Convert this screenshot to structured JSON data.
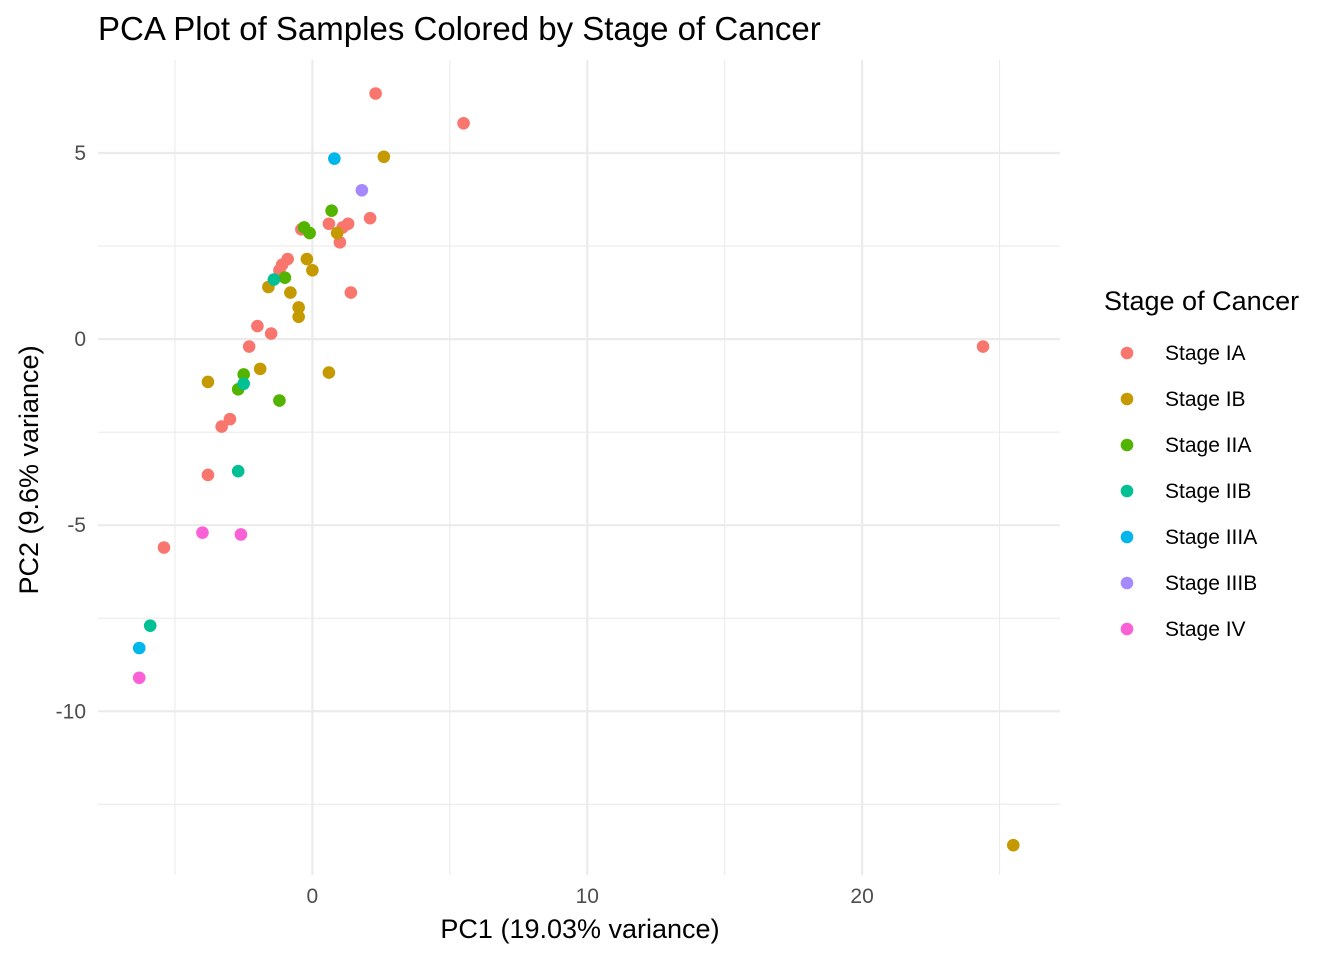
{
  "chart_data": {
    "type": "scatter",
    "title": "PCA Plot of Samples Colored by Stage of Cancer",
    "xlabel": "PC1 (19.03% variance)",
    "ylabel": "PC2 (9.6% variance)",
    "xlim": [
      -7.8,
      27.2
    ],
    "ylim": [
      -14.4,
      7.5
    ],
    "x_ticks": [
      0,
      10,
      20
    ],
    "x_tick_labels": [
      "0",
      "10",
      "20"
    ],
    "x_minor": [
      -5,
      5,
      15,
      25
    ],
    "y_ticks": [
      -10,
      -5,
      0,
      5
    ],
    "y_tick_labels": [
      "-10",
      "-5",
      "0",
      "5"
    ],
    "y_minor": [
      -12.5,
      -7.5,
      -2.5,
      2.5
    ],
    "grid": true,
    "legend_title": "Stage of Cancer",
    "legend_position": "right",
    "series": [
      {
        "name": "Stage IA",
        "color": "#F8766D",
        "points": [
          [
            2.3,
            6.6
          ],
          [
            5.5,
            5.8
          ],
          [
            2.1,
            3.25
          ],
          [
            1.3,
            3.1
          ],
          [
            0.6,
            3.1
          ],
          [
            1.1,
            3.0
          ],
          [
            -0.4,
            2.95
          ],
          [
            1.0,
            2.6
          ],
          [
            -0.9,
            2.15
          ],
          [
            -1.1,
            2.0
          ],
          [
            -1.2,
            1.85
          ],
          [
            1.4,
            1.25
          ],
          [
            -2.0,
            0.35
          ],
          [
            -1.5,
            0.15
          ],
          [
            -2.3,
            -0.2
          ],
          [
            -3.0,
            -2.15
          ],
          [
            -3.3,
            -2.35
          ],
          [
            -3.8,
            -3.65
          ],
          [
            -5.4,
            -5.6
          ],
          [
            24.4,
            -0.2
          ]
        ]
      },
      {
        "name": "Stage IB",
        "color": "#C49A00",
        "points": [
          [
            2.6,
            4.9
          ],
          [
            0.9,
            2.85
          ],
          [
            -0.2,
            2.15
          ],
          [
            0.0,
            1.85
          ],
          [
            -1.6,
            1.4
          ],
          [
            -0.8,
            1.25
          ],
          [
            -0.5,
            0.85
          ],
          [
            -0.5,
            0.6
          ],
          [
            -1.9,
            -0.8
          ],
          [
            -3.8,
            -1.15
          ],
          [
            0.6,
            -0.9
          ],
          [
            25.5,
            -13.6
          ]
        ]
      },
      {
        "name": "Stage IIA",
        "color": "#53B400",
        "points": [
          [
            0.7,
            3.45
          ],
          [
            -0.3,
            3.0
          ],
          [
            -0.1,
            2.85
          ],
          [
            -1.0,
            1.65
          ],
          [
            -2.5,
            -0.95
          ],
          [
            -2.7,
            -1.35
          ],
          [
            -1.2,
            -1.65
          ]
        ]
      },
      {
        "name": "Stage IIB",
        "color": "#00C094",
        "points": [
          [
            -1.4,
            1.6
          ],
          [
            -2.5,
            -1.2
          ],
          [
            -2.7,
            -3.55
          ],
          [
            -5.9,
            -7.7
          ]
        ]
      },
      {
        "name": "Stage IIIA",
        "color": "#00B6EB",
        "points": [
          [
            0.8,
            4.85
          ],
          [
            -6.3,
            -8.3
          ]
        ]
      },
      {
        "name": "Stage IIIB",
        "color": "#A58AFF",
        "points": [
          [
            1.8,
            4.0
          ]
        ]
      },
      {
        "name": "Stage IV",
        "color": "#FB61D7",
        "points": [
          [
            -4.0,
            -5.2
          ],
          [
            -2.6,
            -5.25
          ],
          [
            -6.3,
            -9.1
          ]
        ]
      }
    ]
  }
}
